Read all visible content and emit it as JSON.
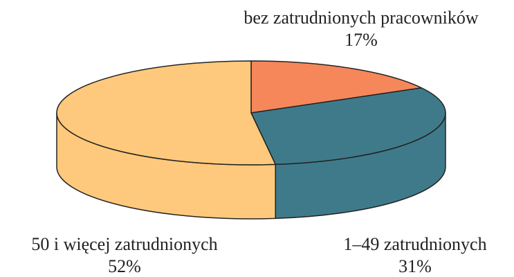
{
  "chart_data": {
    "type": "pie",
    "categories": [
      "bez zatrudnionych pracowników",
      "1–49 zatrudnionych",
      "50 i więcej zatrudnionych"
    ],
    "values": [
      17,
      31,
      52
    ],
    "value_labels": [
      "17%",
      "31%",
      "52%"
    ],
    "colors": [
      "#f5875b",
      "#3f7a8b",
      "#fec97c"
    ]
  }
}
